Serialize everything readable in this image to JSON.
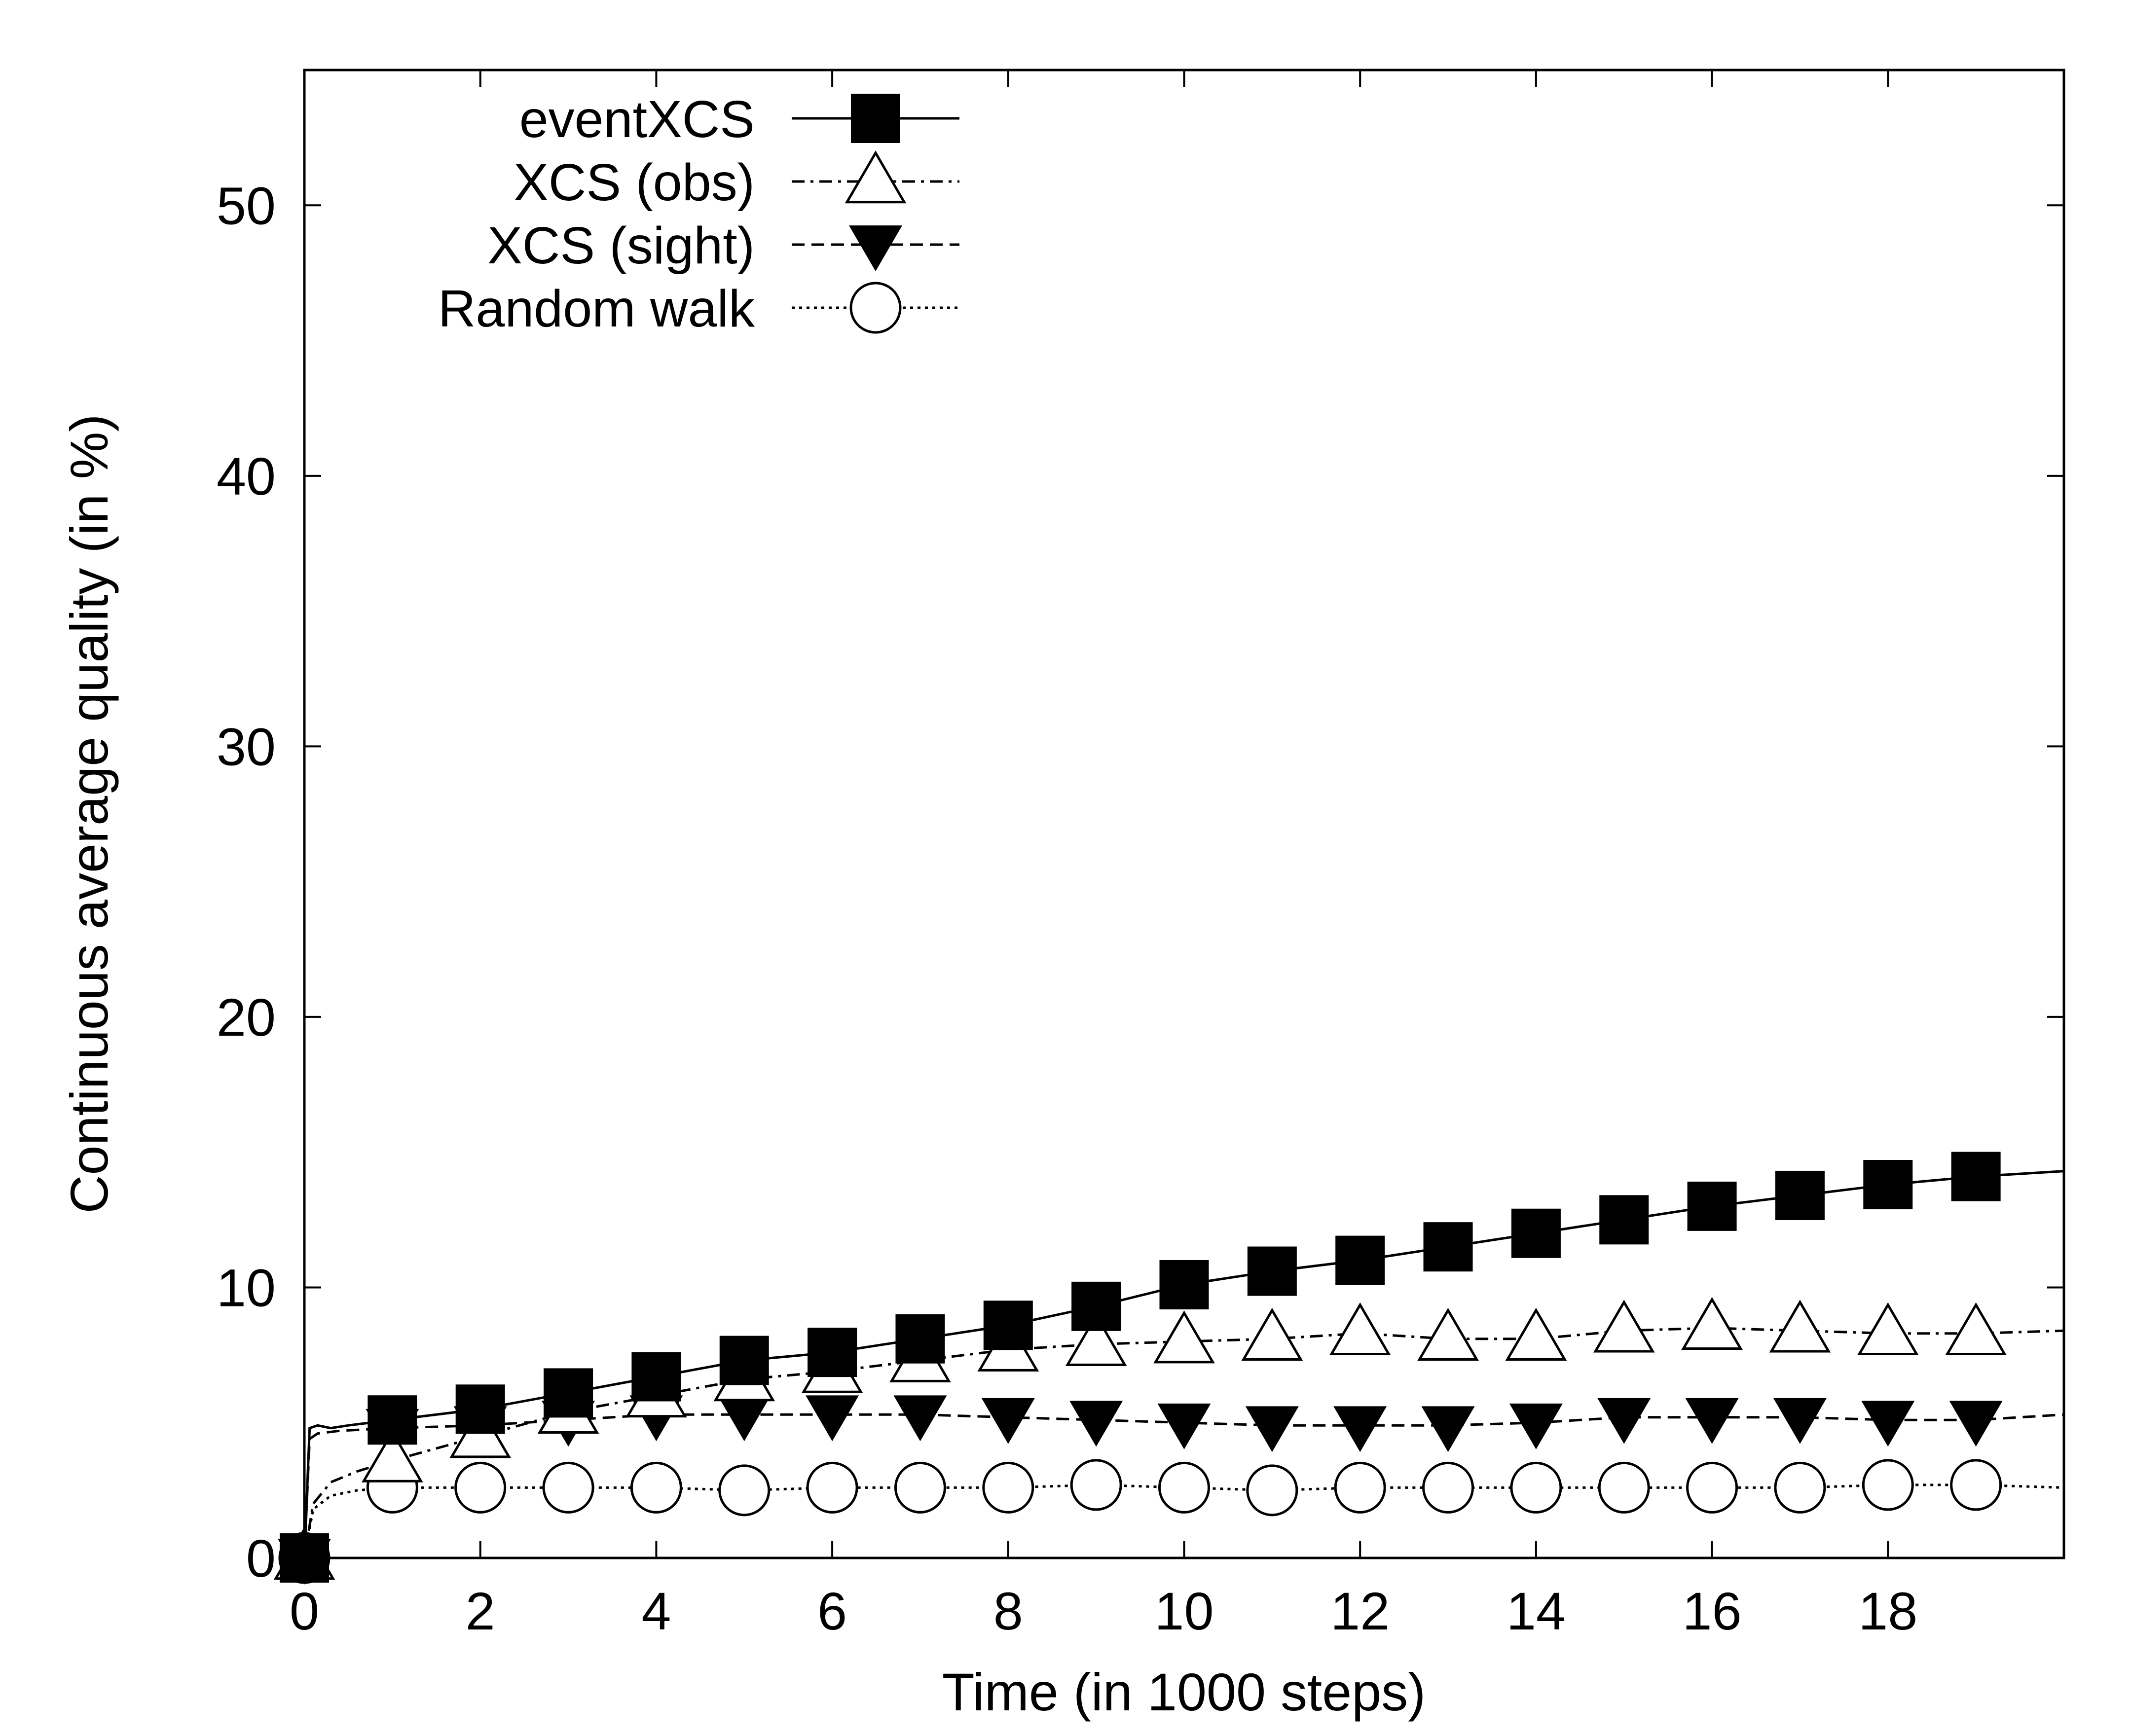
{
  "chart_data": {
    "type": "line",
    "title": "",
    "xlabel": "Time (in 1000 steps)",
    "ylabel": "Continuous average quality (in %)",
    "xlim": [
      0,
      20
    ],
    "ylim": [
      0,
      55
    ],
    "xticks": [
      0,
      2,
      4,
      6,
      8,
      10,
      12,
      14,
      16,
      18
    ],
    "yticks": [
      0,
      10,
      20,
      30,
      40,
      50
    ],
    "grid": false,
    "legend_position": "top-left",
    "series": [
      {
        "name": "eventXCS",
        "line_style": "solid",
        "marker": "filled-square",
        "color": "#000000",
        "curve_x": [
          0,
          0.06,
          0.15,
          0.3,
          0.5,
          1,
          2,
          3,
          4,
          5,
          6,
          7,
          8,
          9,
          10,
          11,
          12,
          13,
          14,
          15,
          16,
          17,
          18,
          19,
          20
        ],
        "curve_y": [
          0,
          4.8,
          4.9,
          4.8,
          4.9,
          5.1,
          5.5,
          6.1,
          6.7,
          7.3,
          7.6,
          8.1,
          8.6,
          9.3,
          10.1,
          10.6,
          11.0,
          11.5,
          12.0,
          12.5,
          13.0,
          13.4,
          13.8,
          14.1,
          14.3
        ],
        "marker_x": [
          0,
          1,
          2,
          3,
          4,
          5,
          6,
          7,
          8,
          9,
          10,
          11,
          12,
          13,
          14,
          15,
          16,
          17,
          18,
          19
        ],
        "marker_y": [
          0,
          5.1,
          5.5,
          6.1,
          6.7,
          7.3,
          7.6,
          8.1,
          8.6,
          9.3,
          10.1,
          10.6,
          11.0,
          11.5,
          12.0,
          12.5,
          13.0,
          13.4,
          13.8,
          14.1
        ]
      },
      {
        "name": "XCS (obs)",
        "line_style": "dash-dot",
        "marker": "hollow-triangle-up",
        "color": "#000000",
        "curve_x": [
          0,
          0.1,
          0.3,
          0.6,
          1,
          2,
          3,
          4,
          5,
          6,
          7,
          8,
          9,
          10,
          11,
          12,
          13,
          14,
          15,
          16,
          17,
          18,
          19,
          20
        ],
        "curve_y": [
          0,
          2.0,
          2.8,
          3.2,
          3.6,
          4.5,
          5.4,
          6.0,
          6.6,
          6.9,
          7.3,
          7.7,
          7.9,
          8.0,
          8.1,
          8.3,
          8.1,
          8.1,
          8.4,
          8.5,
          8.4,
          8.3,
          8.3,
          8.4
        ],
        "marker_x": [
          0,
          1,
          2,
          3,
          4,
          5,
          6,
          7,
          8,
          9,
          10,
          11,
          12,
          13,
          14,
          15,
          16,
          17,
          18,
          19
        ],
        "marker_y": [
          0,
          3.6,
          4.5,
          5.4,
          6.0,
          6.6,
          6.9,
          7.3,
          7.7,
          7.9,
          8.0,
          8.1,
          8.3,
          8.1,
          8.1,
          8.4,
          8.5,
          8.4,
          8.3,
          8.3
        ]
      },
      {
        "name": "XCS (sight)",
        "line_style": "dashed",
        "marker": "filled-triangle-down",
        "color": "#000000",
        "curve_x": [
          0,
          0.06,
          0.15,
          0.4,
          1,
          2,
          3,
          4,
          5,
          6,
          7,
          8,
          9,
          10,
          11,
          12,
          13,
          14,
          15,
          16,
          17,
          18,
          19,
          20
        ],
        "curve_y": [
          0,
          4.4,
          4.6,
          4.7,
          4.8,
          4.9,
          5.1,
          5.3,
          5.3,
          5.3,
          5.3,
          5.2,
          5.1,
          5.0,
          4.9,
          4.9,
          4.9,
          5.0,
          5.2,
          5.2,
          5.2,
          5.1,
          5.1,
          5.3
        ],
        "marker_x": [
          0,
          1,
          2,
          3,
          4,
          5,
          6,
          7,
          8,
          9,
          10,
          11,
          12,
          13,
          14,
          15,
          16,
          17,
          18,
          19
        ],
        "marker_y": [
          0,
          4.8,
          4.9,
          5.1,
          5.3,
          5.3,
          5.3,
          5.3,
          5.2,
          5.1,
          5.0,
          4.9,
          4.9,
          4.9,
          5.0,
          5.2,
          5.2,
          5.2,
          5.1,
          5.1
        ]
      },
      {
        "name": "Random walk",
        "line_style": "dotted",
        "marker": "hollow-circle",
        "color": "#000000",
        "curve_x": [
          0,
          0.1,
          0.3,
          0.6,
          1,
          2,
          3,
          4,
          5,
          6,
          7,
          8,
          9,
          10,
          11,
          12,
          13,
          14,
          15,
          16,
          17,
          18,
          19,
          20
        ],
        "curve_y": [
          0,
          1.8,
          2.3,
          2.5,
          2.6,
          2.6,
          2.6,
          2.6,
          2.5,
          2.6,
          2.6,
          2.6,
          2.7,
          2.6,
          2.5,
          2.6,
          2.6,
          2.6,
          2.6,
          2.6,
          2.6,
          2.7,
          2.7,
          2.6
        ],
        "marker_x": [
          0,
          1,
          2,
          3,
          4,
          5,
          6,
          7,
          8,
          9,
          10,
          11,
          12,
          13,
          14,
          15,
          16,
          17,
          18,
          19
        ],
        "marker_y": [
          0,
          2.6,
          2.6,
          2.6,
          2.6,
          2.5,
          2.6,
          2.6,
          2.6,
          2.7,
          2.6,
          2.5,
          2.6,
          2.6,
          2.6,
          2.6,
          2.6,
          2.6,
          2.7,
          2.7
        ]
      }
    ]
  }
}
